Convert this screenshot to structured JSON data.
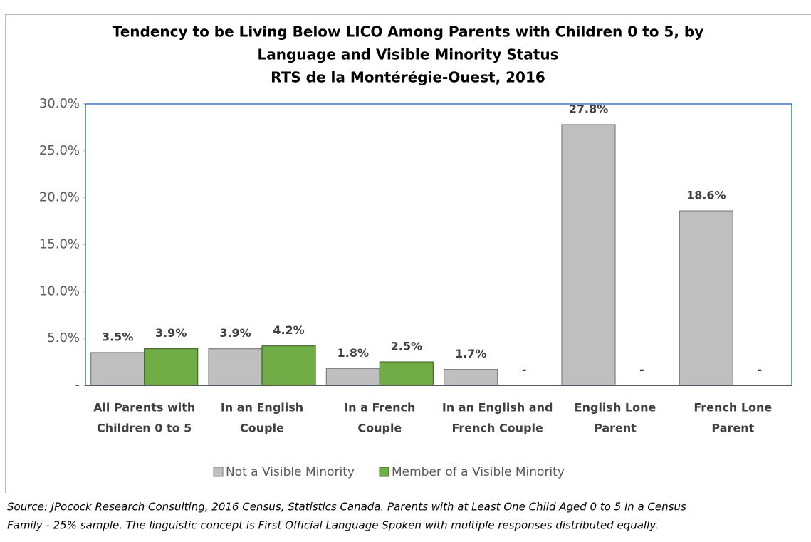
{
  "chart_data": {
    "type": "bar",
    "title": [
      "Tendency to be Living Below LICO Among Parents with Children 0 to 5, by",
      "Language and Visible Minority Status",
      "RTS de la Montérégie-Ouest, 2016"
    ],
    "categories": [
      [
        "All Parents with",
        "Children 0 to 5"
      ],
      [
        "In an English",
        "Couple"
      ],
      [
        "In a French",
        "Couple"
      ],
      [
        "In an English and",
        "French Couple"
      ],
      [
        "English Lone",
        "Parent"
      ],
      [
        "French Lone",
        "Parent"
      ]
    ],
    "series": [
      {
        "name": "Not a Visible Minority",
        "color": "#bfbfbf",
        "values": [
          3.5,
          3.9,
          1.8,
          1.7,
          27.8,
          18.6
        ],
        "value_labels": [
          "3.5%",
          "3.9%",
          "1.8%",
          "1.7%",
          "27.8%",
          "18.6%"
        ]
      },
      {
        "name": "Member of a Visible Minority",
        "color": "#70ad47",
        "values": [
          3.9,
          4.2,
          2.5,
          0,
          0,
          0
        ],
        "value_labels": [
          "3.9%",
          "4.2%",
          "2.5%",
          "-",
          "-",
          "-"
        ]
      }
    ],
    "ylim": [
      0,
      30
    ],
    "yticks": [
      {
        "value": 0,
        "label": "-"
      },
      {
        "value": 5,
        "label": "5.0%"
      },
      {
        "value": 10,
        "label": "10.0%"
      },
      {
        "value": 15,
        "label": "15.0%"
      },
      {
        "value": 20,
        "label": "20.0%"
      },
      {
        "value": 25,
        "label": "25.0%"
      },
      {
        "value": 30,
        "label": "30.0%"
      }
    ],
    "legend": "bottom",
    "source": [
      "Source: JPocock Research Consulting, 2016 Census, Statistics Canada. Parents with at Least One Child Aged 0 to 5 in a Census",
      "Family - 25% sample. The linguistic concept is First Official Language Spoken with multiple responses distributed equally."
    ]
  }
}
